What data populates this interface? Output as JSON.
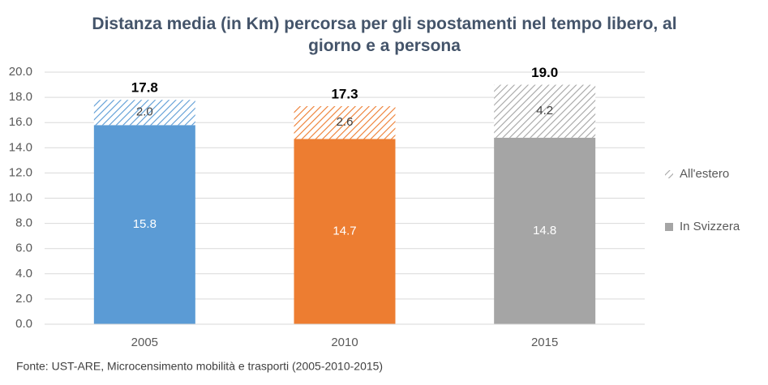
{
  "chart_data": {
    "type": "stacked_bar",
    "title": "Distanza media (in Km) percorsa per gli spostamenti nel tempo libero, al giorno e a persona",
    "categories": [
      "2005",
      "2010",
      "2015"
    ],
    "category_colors": [
      "#5b9bd5",
      "#ed7d31",
      "#a5a5a5"
    ],
    "series": [
      {
        "name": "In Svizzera",
        "color": "#a5a5a5",
        "hatch": false,
        "values": [
          15.8,
          14.7,
          14.8
        ],
        "value_labels": [
          "15.8",
          "14.7",
          "14.8"
        ]
      },
      {
        "name": "All'estero",
        "color": "#a5a5a5",
        "hatch": true,
        "values": [
          2.0,
          2.6,
          4.2
        ],
        "value_labels": [
          "2.0",
          "2.6",
          "4.2"
        ]
      }
    ],
    "totals": [
      17.8,
      17.3,
      19.0
    ],
    "total_labels": [
      "17.8",
      "17.3",
      "19.0"
    ],
    "ylim": [
      0,
      20
    ],
    "yticks": [
      {
        "value": 0,
        "label": "0.0"
      },
      {
        "value": 2,
        "label": "2.0"
      },
      {
        "value": 4,
        "label": "4.0"
      },
      {
        "value": 6,
        "label": "6.0"
      },
      {
        "value": 8,
        "label": "8.0"
      },
      {
        "value": 10,
        "label": "10.0"
      },
      {
        "value": 12,
        "label": "12.0"
      },
      {
        "value": 14,
        "label": "14.0"
      },
      {
        "value": 16,
        "label": "16.0"
      },
      {
        "value": 18,
        "label": "18.0"
      },
      {
        "value": 20,
        "label": "20.0"
      }
    ],
    "grid": true,
    "legend": "right",
    "source": "Fonte: UST-ARE, Microcensimento mobilità e trasporti (2005-2010-2015)"
  }
}
